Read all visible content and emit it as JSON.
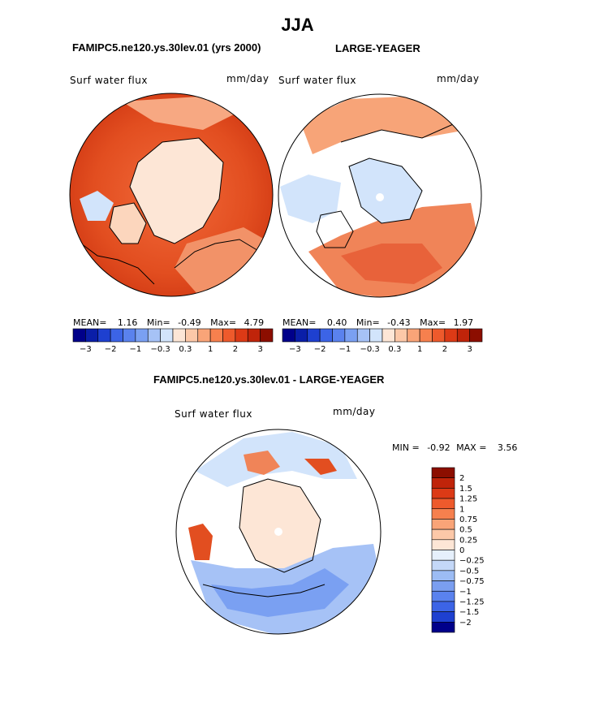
{
  "page": {
    "title": "JJA",
    "diff_title": "FAMIPC5.ne120.ys.30lev.01 - LARGE-YEAGER"
  },
  "panels": [
    {
      "case_title": "FAMIPC5.ne120.ys.30lev.01 (yrs 2000)",
      "variable": "Surf water flux",
      "units": "mm/day",
      "stats": {
        "mean_label": "MEAN=",
        "mean": "1.16",
        "min_label": "Min=",
        "min": "-0.49",
        "max_label": "Max=",
        "max": "4.79"
      }
    },
    {
      "case_title": "LARGE-YEAGER",
      "variable": "Surf water flux",
      "units": "mm/day",
      "stats": {
        "mean_label": "MEAN=",
        "mean": "0.40",
        "min_label": "Min=",
        "min": "-0.43",
        "max_label": "Max=",
        "max": "1.97"
      }
    },
    {
      "variable": "Surf water flux",
      "units": "mm/day",
      "stats": {
        "min_label": "MIN =",
        "min": "-0.92",
        "max_label": "MAX =",
        "max": "3.56"
      }
    }
  ],
  "chart_data": [
    {
      "type": "heatmap",
      "title": "FAMIPC5.ne120.ys.30lev.01 (yrs 2000)",
      "projection": "polar-stereographic-north",
      "variable": "Surf water flux",
      "units": "mm/day",
      "mean": 1.16,
      "min": -0.49,
      "max": 4.79,
      "colorbar_levels": [
        "-3",
        "-2",
        "-1",
        "-0.3",
        "0.3",
        "1",
        "2",
        "3"
      ],
      "colorbar_colors": [
        "#00008a",
        "#0a1ea8",
        "#1e40d0",
        "#3c64e6",
        "#5a82ee",
        "#7aa0f2",
        "#a6c2f6",
        "#d2e4fb",
        "#fde6d6",
        "#fcc8a8",
        "#f9a478",
        "#f6804e",
        "#ee5a2c",
        "#dc3a16",
        "#c0240a",
        "#8c0e00"
      ],
      "colorbar_position": "below"
    },
    {
      "type": "heatmap",
      "title": "LARGE-YEAGER",
      "projection": "polar-stereographic-north",
      "variable": "Surf water flux",
      "units": "mm/day",
      "mean": 0.4,
      "min": -0.43,
      "max": 1.97,
      "colorbar_levels": [
        "-3",
        "-2",
        "-1",
        "-0.3",
        "0.3",
        "1",
        "2",
        "3"
      ],
      "colorbar_colors": [
        "#00008a",
        "#0a1ea8",
        "#1e40d0",
        "#3c64e6",
        "#5a82ee",
        "#7aa0f2",
        "#a6c2f6",
        "#d2e4fb",
        "#fde6d6",
        "#fcc8a8",
        "#f9a478",
        "#f6804e",
        "#ee5a2c",
        "#dc3a16",
        "#c0240a",
        "#8c0e00"
      ],
      "colorbar_position": "below"
    },
    {
      "type": "heatmap",
      "title": "FAMIPC5.ne120.ys.30lev.01 - LARGE-YEAGER",
      "projection": "polar-stereographic-north",
      "variable": "Surf water flux",
      "units": "mm/day",
      "min": -0.92,
      "max": 3.56,
      "colorbar_levels": [
        "2",
        "1.5",
        "1.25",
        "1",
        "0.75",
        "0.5",
        "0.25",
        "0",
        "-0.25",
        "-0.5",
        "-0.75",
        "-1",
        "-1.25",
        "-1.5",
        "-2"
      ],
      "colorbar_colors": [
        "#8c0e00",
        "#c0240a",
        "#dc3a16",
        "#ee5a2c",
        "#f6804e",
        "#f9a478",
        "#fcc8a8",
        "#fde6d6",
        "#e6f0fc",
        "#c4d8f8",
        "#9cbcf4",
        "#7a9ef0",
        "#5a82ee",
        "#3c64e6",
        "#1e40d0",
        "#00008a"
      ],
      "colorbar_position": "right"
    }
  ]
}
